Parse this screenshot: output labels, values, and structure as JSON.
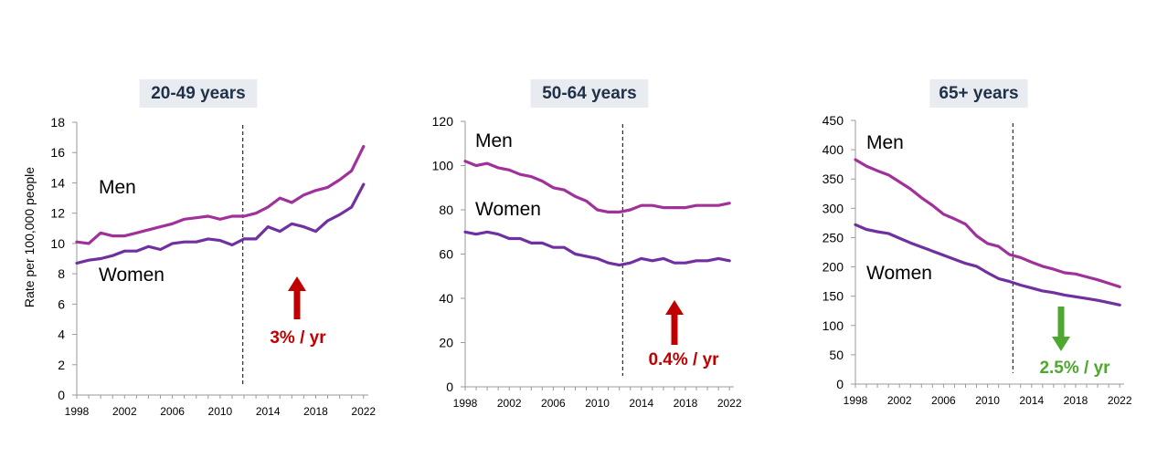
{
  "colors": {
    "men": "#a0319b",
    "women": "#7030a0",
    "up": "#c00000",
    "down": "#4ea72e",
    "title_bg": "#e8ebf0",
    "title_text": "#1f3148"
  },
  "chart_data": [
    {
      "type": "line",
      "title": "20-49 years",
      "ylabel": "Rate per 100,000 people",
      "ylim": [
        0,
        18
      ],
      "yticks": [
        "0",
        "2",
        "4",
        "6",
        "8",
        "10",
        "12",
        "14",
        "16",
        "18"
      ],
      "xlim": [
        1998,
        2022
      ],
      "xticks": [
        "1998",
        "2002",
        "2006",
        "2010",
        "2014",
        "2018",
        "2022"
      ],
      "breakpoint_year": 2011.9,
      "trend_label": "3% / yr",
      "trend_direction": "up",
      "series": [
        {
          "name": "Men",
          "x": [
            1998,
            1999,
            2000,
            2001,
            2002,
            2003,
            2004,
            2005,
            2006,
            2007,
            2008,
            2009,
            2010,
            2011,
            2012,
            2013,
            2014,
            2015,
            2016,
            2017,
            2018,
            2019,
            2020,
            2021,
            2022
          ],
          "values": [
            10.1,
            10.0,
            10.7,
            10.5,
            10.5,
            10.7,
            10.9,
            11.1,
            11.3,
            11.6,
            11.7,
            11.8,
            11.6,
            11.8,
            11.8,
            12.0,
            12.4,
            13.0,
            12.7,
            13.2,
            13.5,
            13.7,
            14.2,
            14.8,
            16.4
          ]
        },
        {
          "name": "Women",
          "x": [
            1998,
            1999,
            2000,
            2001,
            2002,
            2003,
            2004,
            2005,
            2006,
            2007,
            2008,
            2009,
            2010,
            2011,
            2012,
            2013,
            2014,
            2015,
            2016,
            2017,
            2018,
            2019,
            2020,
            2021,
            2022
          ],
          "values": [
            8.7,
            8.9,
            9.0,
            9.2,
            9.5,
            9.5,
            9.8,
            9.6,
            10.0,
            10.1,
            10.1,
            10.3,
            10.2,
            9.9,
            10.3,
            10.3,
            11.1,
            10.8,
            11.3,
            11.1,
            10.8,
            11.5,
            11.9,
            12.4,
            13.9
          ]
        }
      ]
    },
    {
      "type": "line",
      "title": "50-64 years",
      "ylim": [
        0,
        120
      ],
      "yticks": [
        "0",
        "20",
        "40",
        "60",
        "80",
        "100",
        "120"
      ],
      "xlim": [
        1998,
        2022
      ],
      "xticks": [
        "1998",
        "2002",
        "2006",
        "2010",
        "2014",
        "2018",
        "2022"
      ],
      "breakpoint_year": 2012.3,
      "trend_label": "0.4% / yr",
      "trend_direction": "up",
      "series": [
        {
          "name": "Men",
          "x": [
            1998,
            1999,
            2000,
            2001,
            2002,
            2003,
            2004,
            2005,
            2006,
            2007,
            2008,
            2009,
            2010,
            2011,
            2012,
            2013,
            2014,
            2015,
            2016,
            2017,
            2018,
            2019,
            2020,
            2021,
            2022
          ],
          "values": [
            102,
            100,
            101,
            99,
            98,
            96,
            95,
            93,
            90,
            89,
            86,
            84,
            80,
            79,
            79,
            80,
            82,
            82,
            81,
            81,
            81,
            82,
            82,
            82,
            83
          ]
        },
        {
          "name": "Women",
          "x": [
            1998,
            1999,
            2000,
            2001,
            2002,
            2003,
            2004,
            2005,
            2006,
            2007,
            2008,
            2009,
            2010,
            2011,
            2012,
            2013,
            2014,
            2015,
            2016,
            2017,
            2018,
            2019,
            2020,
            2021,
            2022
          ],
          "values": [
            70,
            69,
            70,
            69,
            67,
            67,
            65,
            65,
            63,
            63,
            60,
            59,
            58,
            56,
            55,
            56,
            58,
            57,
            58,
            56,
            56,
            57,
            57,
            58,
            57
          ]
        }
      ]
    },
    {
      "type": "line",
      "title": "65+ years",
      "ylim": [
        0,
        450
      ],
      "yticks": [
        "0",
        "50",
        "100",
        "150",
        "200",
        "250",
        "300",
        "350",
        "400",
        "450"
      ],
      "xlim": [
        1998,
        2022
      ],
      "xticks": [
        "1998",
        "2002",
        "2006",
        "2010",
        "2014",
        "2018",
        "2022"
      ],
      "breakpoint_year": 2012.3,
      "trend_label": "2.5% / yr",
      "trend_direction": "down",
      "series": [
        {
          "name": "Men",
          "x": [
            1998,
            1999,
            2000,
            2001,
            2002,
            2003,
            2004,
            2005,
            2006,
            2007,
            2008,
            2009,
            2010,
            2011,
            2012,
            2013,
            2014,
            2015,
            2016,
            2017,
            2018,
            2019,
            2020,
            2021,
            2022
          ],
          "values": [
            383,
            372,
            364,
            357,
            345,
            333,
            318,
            305,
            290,
            282,
            273,
            253,
            240,
            235,
            221,
            216,
            208,
            201,
            196,
            190,
            188,
            183,
            178,
            172,
            166
          ]
        },
        {
          "name": "Women",
          "x": [
            1998,
            1999,
            2000,
            2001,
            2002,
            2003,
            2004,
            2005,
            2006,
            2007,
            2008,
            2009,
            2010,
            2011,
            2012,
            2013,
            2014,
            2015,
            2016,
            2017,
            2018,
            2019,
            2020,
            2021,
            2022
          ],
          "values": [
            272,
            264,
            260,
            257,
            249,
            241,
            234,
            227,
            220,
            213,
            206,
            201,
            190,
            180,
            175,
            169,
            164,
            159,
            156,
            152,
            149,
            146,
            143,
            139,
            135
          ]
        }
      ]
    }
  ]
}
